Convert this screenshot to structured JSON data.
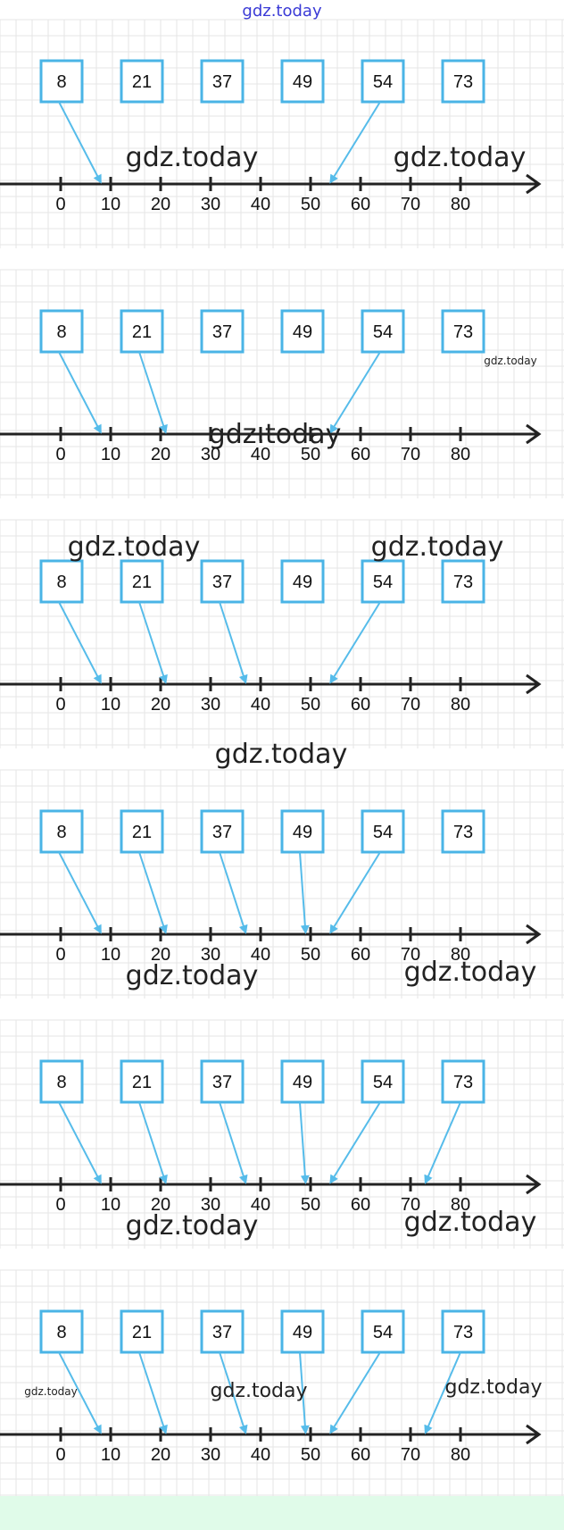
{
  "header": {
    "site_label": "gdz.today"
  },
  "numbers": [
    "8",
    "21",
    "37",
    "49",
    "54",
    "73"
  ],
  "number_values": [
    8,
    21,
    37,
    49,
    54,
    73
  ],
  "axis_ticks": [
    "0",
    "10",
    "20",
    "30",
    "40",
    "50",
    "60",
    "70",
    "80"
  ],
  "axis_tick_values": [
    0,
    10,
    20,
    30,
    40,
    50,
    60,
    70,
    80
  ],
  "colors": {
    "box_border": "#4ab4e6",
    "arrow": "#56bcea",
    "axis": "#222222",
    "grid": "#e6e6e6",
    "footer": "#e0fbe9",
    "header_text": "#3a3ad6"
  },
  "panels": [
    {
      "connected_numbers": [
        8,
        54
      ],
      "watermarks": [
        "gdz.today",
        "gdz.today"
      ]
    },
    {
      "connected_numbers": [
        8,
        21,
        54
      ],
      "watermarks": [
        "gdz.today",
        "gdz.today"
      ]
    },
    {
      "connected_numbers": [
        8,
        21,
        37,
        54
      ],
      "watermarks": [
        "gdz.today",
        "gdz.today",
        "gdz.today"
      ]
    },
    {
      "connected_numbers": [
        8,
        21,
        37,
        49,
        54
      ],
      "watermarks": [
        "gdz.today",
        "gdz.today"
      ]
    },
    {
      "connected_numbers": [
        8,
        21,
        37,
        49,
        54,
        73
      ],
      "watermarks": [
        "gdz.today",
        "gdz.today"
      ]
    },
    {
      "connected_numbers": [
        8,
        21,
        37,
        49,
        54,
        73
      ],
      "watermarks": [
        "gdz.today",
        "gdz.today",
        "gdz.today"
      ]
    }
  ]
}
